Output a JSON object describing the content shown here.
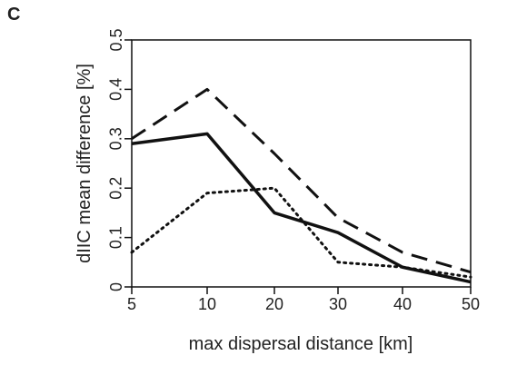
{
  "panel_label": "C",
  "chart_data": {
    "type": "line",
    "categories": [
      "5",
      "10",
      "20",
      "30",
      "40",
      "50"
    ],
    "xlabel": "max dispersal distance [km]",
    "ylabel": "dIIC mean difference [%]",
    "ylim": [
      0,
      0.5
    ],
    "yticks": [
      "0",
      "0.1",
      "0.2",
      "0.3",
      "0.4",
      "0.5"
    ],
    "grid": false,
    "series": [
      {
        "style": "dashed",
        "values": [
          0.3,
          0.4,
          0.27,
          0.14,
          0.07,
          0.03
        ]
      },
      {
        "style": "solid",
        "values": [
          0.29,
          0.31,
          0.15,
          0.11,
          0.04,
          0.01
        ]
      },
      {
        "style": "dotted",
        "values": [
          0.07,
          0.19,
          0.2,
          0.05,
          0.04,
          0.02
        ]
      }
    ]
  }
}
